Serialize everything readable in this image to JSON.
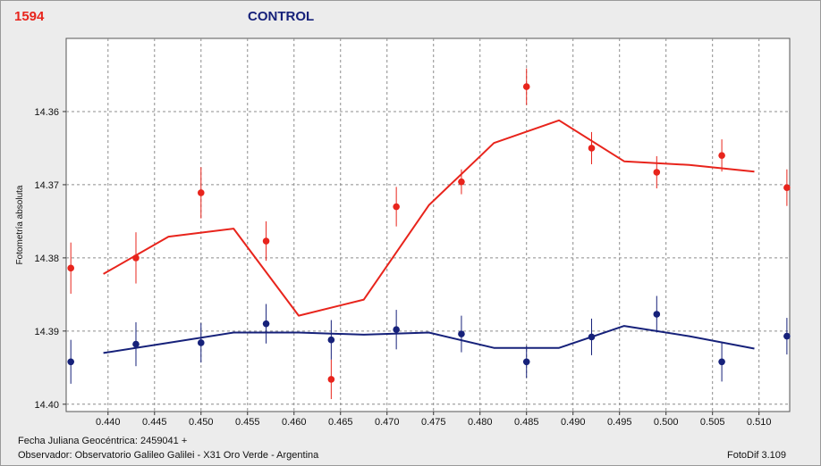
{
  "header": {
    "id_label": "1594",
    "title": "CONTROL"
  },
  "footer": {
    "date_line": "Fecha Juliana Geocéntrica: 2459041 +",
    "observer_line": "Observador: Observatorio Galileo Galilei - X31 Oro Verde - Argentina",
    "software": "FotoDif 3.109"
  },
  "colors": {
    "red_series": "#e8241c",
    "blue_series": "#16217a",
    "plot_bg": "#ffffff",
    "grid": "#8c8c8c"
  },
  "chart_data": {
    "type": "scatter",
    "ylabel": "Fotometría absoluta",
    "xlabel": "",
    "xlim": [
      0.4355,
      0.5133
    ],
    "ylim": [
      14.35,
      14.401
    ],
    "y_inverted": true,
    "grid": true,
    "x_ticks": [
      "0.440",
      "0.445",
      "0.450",
      "0.455",
      "0.460",
      "0.465",
      "0.470",
      "0.475",
      "0.480",
      "0.485",
      "0.490",
      "0.495",
      "0.500",
      "0.505",
      "0.510"
    ],
    "y_ticks": [
      "14.36",
      "14.37",
      "14.38",
      "14.39",
      "14.40"
    ],
    "series": [
      {
        "color": "#e8241c",
        "points": [
          {
            "x": 0.436,
            "y": 14.3814,
            "err": 0.0035
          },
          {
            "x": 0.443,
            "y": 14.38,
            "err": 0.0035
          },
          {
            "x": 0.45,
            "y": 14.3711,
            "err": 0.0035
          },
          {
            "x": 0.457,
            "y": 14.3777,
            "err": 0.0027
          },
          {
            "x": 0.464,
            "y": 14.3966,
            "err": 0.0027
          },
          {
            "x": 0.471,
            "y": 14.373,
            "err": 0.0027
          },
          {
            "x": 0.478,
            "y": 14.3696,
            "err": 0.0017
          },
          {
            "x": 0.485,
            "y": 14.3566,
            "err": 0.0025
          },
          {
            "x": 0.492,
            "y": 14.365,
            "err": 0.0022
          },
          {
            "x": 0.499,
            "y": 14.3683,
            "err": 0.0022
          },
          {
            "x": 0.506,
            "y": 14.366,
            "err": 0.0022
          },
          {
            "x": 0.513,
            "y": 14.3704,
            "err": 0.0025
          }
        ],
        "trend": [
          {
            "x": 0.4395,
            "y": 14.3822
          },
          {
            "x": 0.4465,
            "y": 14.3771
          },
          {
            "x": 0.4535,
            "y": 14.376
          },
          {
            "x": 0.4605,
            "y": 14.3879
          },
          {
            "x": 0.4675,
            "y": 14.3857
          },
          {
            "x": 0.4745,
            "y": 14.3728
          },
          {
            "x": 0.4815,
            "y": 14.3643
          },
          {
            "x": 0.4885,
            "y": 14.3612
          },
          {
            "x": 0.4955,
            "y": 14.3668
          },
          {
            "x": 0.5025,
            "y": 14.3673
          },
          {
            "x": 0.5095,
            "y": 14.3682
          }
        ]
      },
      {
        "color": "#16217a",
        "points": [
          {
            "x": 0.436,
            "y": 14.3942,
            "err": 0.003
          },
          {
            "x": 0.443,
            "y": 14.3918,
            "err": 0.003
          },
          {
            "x": 0.45,
            "y": 14.3916,
            "err": 0.0027
          },
          {
            "x": 0.457,
            "y": 14.389,
            "err": 0.0027
          },
          {
            "x": 0.464,
            "y": 14.3912,
            "err": 0.0027
          },
          {
            "x": 0.471,
            "y": 14.3898,
            "err": 0.0027
          },
          {
            "x": 0.478,
            "y": 14.3904,
            "err": 0.0025
          },
          {
            "x": 0.485,
            "y": 14.3942,
            "err": 0.0022
          },
          {
            "x": 0.492,
            "y": 14.3908,
            "err": 0.0025
          },
          {
            "x": 0.499,
            "y": 14.3877,
            "err": 0.0025
          },
          {
            "x": 0.506,
            "y": 14.3942,
            "err": 0.0027
          },
          {
            "x": 0.513,
            "y": 14.3907,
            "err": 0.0025
          }
        ],
        "trend": [
          {
            "x": 0.4395,
            "y": 14.393
          },
          {
            "x": 0.4465,
            "y": 14.3916
          },
          {
            "x": 0.4535,
            "y": 14.3902
          },
          {
            "x": 0.4605,
            "y": 14.3902
          },
          {
            "x": 0.4675,
            "y": 14.3905
          },
          {
            "x": 0.4745,
            "y": 14.3902
          },
          {
            "x": 0.4815,
            "y": 14.3923
          },
          {
            "x": 0.4885,
            "y": 14.3923
          },
          {
            "x": 0.4955,
            "y": 14.3893
          },
          {
            "x": 0.5025,
            "y": 14.3907
          },
          {
            "x": 0.5095,
            "y": 14.3924
          }
        ]
      }
    ]
  }
}
